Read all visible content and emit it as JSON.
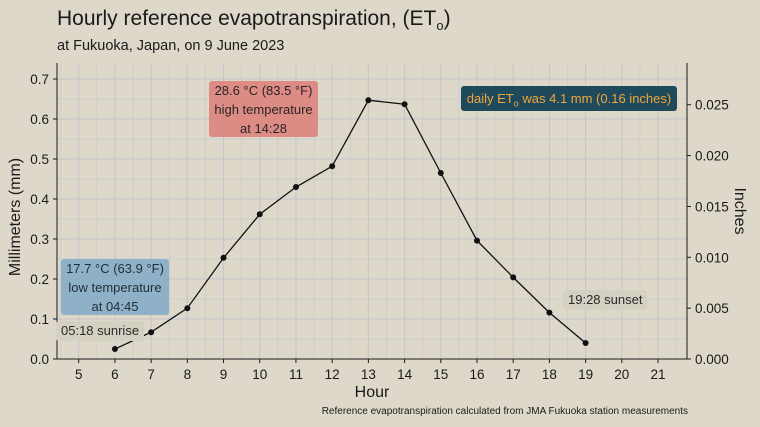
{
  "title_main": "Hourly reference evapotranspiration, (ET",
  "title_sub": "o",
  "title_end": ")",
  "subtitle": "at Fukuoka, Japan, on 9 June 2023",
  "caption": "Reference evapotranspiration calculated from JMA Fukuoka station measurements",
  "annotations": {
    "high": [
      "28.6 °C (83.5 °F)",
      "high temperature",
      "at 14:28"
    ],
    "low": [
      "17.7 °C (63.9 °F)",
      "low temperature",
      "at 04:45"
    ],
    "daily_pre": "daily ET",
    "daily_sub": "o",
    "daily_post": " was 4.1 mm (0.16 inches)",
    "sunrise": "05:18 sunrise",
    "sunset": "19:28 sunset"
  },
  "colors": {
    "background": "#ddd8c9",
    "grid": "#c4c6cf",
    "line": "#111111",
    "high_box": "#dc8c84",
    "low_box": "#8fb1c7",
    "daily_box": "#1f4a5c",
    "daily_text": "#f0a53a"
  },
  "chart_data": {
    "type": "line",
    "title": "Hourly reference evapotranspiration, (ETo)",
    "subtitle": "at Fukuoka, Japan, on 9 June 2023",
    "xlabel": "Hour",
    "ylabel": "Millimeters (mm)",
    "ylabel_right": "Inches",
    "xlim": [
      4.4,
      21.8
    ],
    "ylim": [
      0,
      0.74
    ],
    "ylim_right": [
      0,
      0.0291
    ],
    "x_ticks": [
      5,
      6,
      7,
      8,
      9,
      10,
      11,
      12,
      13,
      14,
      15,
      16,
      17,
      18,
      19,
      20,
      21
    ],
    "x_tick_labels": [
      "5",
      "6",
      "7",
      "8",
      "9",
      "10",
      "11",
      "12",
      "13",
      "14",
      "15",
      "16",
      "17",
      "18",
      "19",
      "20",
      "21"
    ],
    "y_ticks": [
      0,
      0.1,
      0.2,
      0.3,
      0.4,
      0.5,
      0.6,
      0.7
    ],
    "y_tick_labels": [
      "0.0",
      "0.1",
      "0.2",
      "0.3",
      "0.4",
      "0.5",
      "0.6",
      "0.7"
    ],
    "y_ticks_right": [
      0,
      0.005,
      0.01,
      0.015,
      0.02,
      0.025
    ],
    "y_tick_labels_right": [
      "0.000",
      "0.005",
      "0.010",
      "0.015",
      "0.020",
      "0.025"
    ],
    "grid": true,
    "x": [
      6,
      7,
      8,
      9,
      10,
      11,
      12,
      13,
      14,
      15,
      16,
      17,
      18,
      19
    ],
    "y": [
      0.025,
      0.067,
      0.127,
      0.253,
      0.362,
      0.43,
      0.482,
      0.647,
      0.637,
      0.465,
      0.296,
      0.204,
      0.116,
      0.04
    ]
  }
}
